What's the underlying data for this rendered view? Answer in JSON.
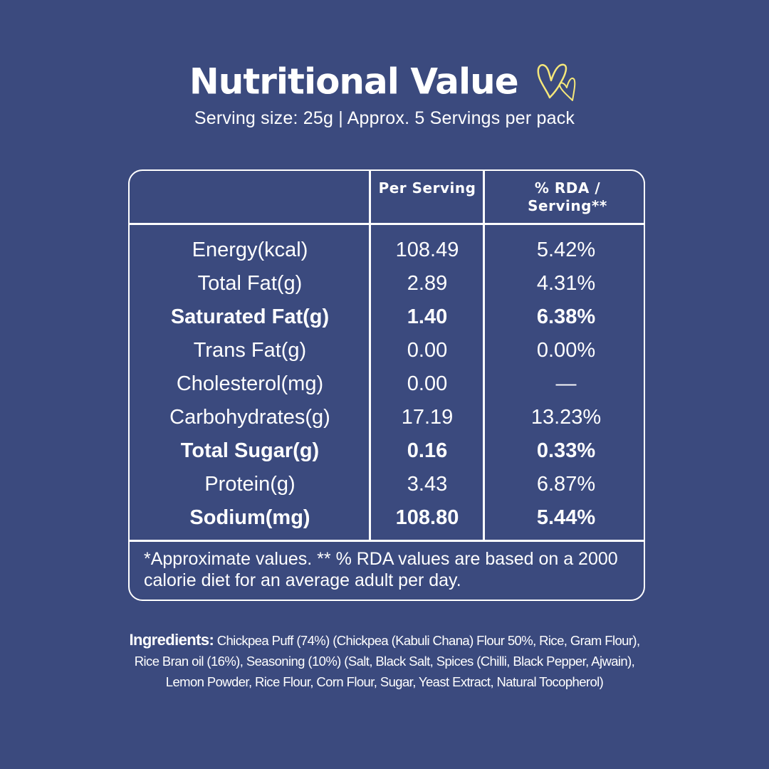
{
  "header": {
    "title": "Nutritional Value",
    "subtitle": "Serving size: 25g | Approx. 5 Servings per pack",
    "accent_color": "#f5e77a",
    "background_color": "#3b4a7e"
  },
  "table": {
    "columns": [
      "",
      "Per Serving",
      "% RDA / Serving**"
    ],
    "rows": [
      {
        "nutrient": "Energy(kcal)",
        "per_serving": "108.49",
        "rda": "5.42%",
        "bold": false
      },
      {
        "nutrient": "Total Fat(g)",
        "per_serving": "2.89",
        "rda": "4.31%",
        "bold": false
      },
      {
        "nutrient": "Saturated Fat(g)",
        "per_serving": "1.40",
        "rda": "6.38%",
        "bold": true
      },
      {
        "nutrient": "Trans Fat(g)",
        "per_serving": "0.00",
        "rda": "0.00%",
        "bold": false
      },
      {
        "nutrient": "Cholesterol(mg)",
        "per_serving": "0.00",
        "rda": "—",
        "bold": false
      },
      {
        "nutrient": "Carbohydrates(g)",
        "per_serving": "17.19",
        "rda": "13.23%",
        "bold": false
      },
      {
        "nutrient": "Total Sugar(g)",
        "per_serving": "0.16",
        "rda": "0.33%",
        "bold": true
      },
      {
        "nutrient": "Protein(g)",
        "per_serving": "3.43",
        "rda": "6.87%",
        "bold": false
      },
      {
        "nutrient": "Sodium(mg)",
        "per_serving": "108.80",
        "rda": "5.44%",
        "bold": true
      }
    ],
    "footnote": "*Approximate values. ** % RDA values are based on a 2000 calorie diet for an average adult per day."
  },
  "ingredients": {
    "label": "Ingredients:",
    "text": "Chickpea Puff (74%) (Chickpea (Kabuli Chana) Flour 50%, Rice, Gram Flour), Rice Bran oil (16%), Seasoning (10%)  (Salt, Black Salt, Spices (Chilli, Black Pepper, Ajwain), Lemon Powder, Rice Flour, Corn Flour, Sugar, Yeast Extract, Natural Tocopherol)"
  }
}
